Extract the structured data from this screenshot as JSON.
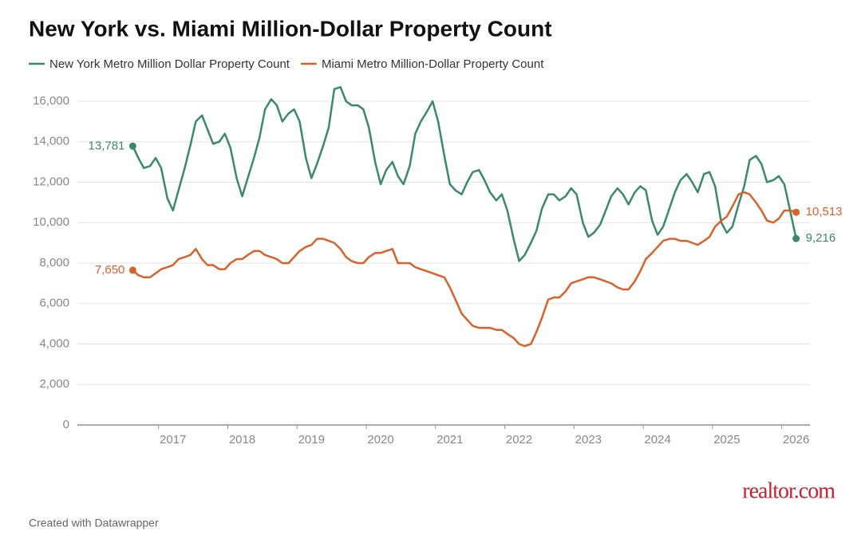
{
  "chart_data": {
    "type": "line",
    "title": "New York vs. Miami Million-Dollar Property Count",
    "footer": "Created with Datawrapper",
    "logo": "realtor.com",
    "x": [
      2016.42,
      2016.5,
      2016.58,
      2016.67,
      2016.75,
      2016.83,
      2016.92,
      2017,
      2017.08,
      2017.17,
      2017.25,
      2017.33,
      2017.42,
      2017.5,
      2017.58,
      2017.67,
      2017.75,
      2017.83,
      2017.92,
      2018,
      2018.08,
      2018.17,
      2018.25,
      2018.33,
      2018.42,
      2018.5,
      2018.58,
      2018.67,
      2018.75,
      2018.83,
      2018.92,
      2019,
      2019.08,
      2019.17,
      2019.25,
      2019.33,
      2019.42,
      2019.5,
      2019.58,
      2019.67,
      2019.75,
      2019.83,
      2019.92,
      2020,
      2020.08,
      2020.17,
      2020.25,
      2020.33,
      2020.42,
      2020.5,
      2020.58,
      2020.67,
      2020.75,
      2020.83,
      2020.92,
      2021,
      2021.08,
      2021.17,
      2021.25,
      2021.33,
      2021.42,
      2021.5,
      2021.58,
      2021.67,
      2021.75,
      2021.83,
      2021.92,
      2022,
      2022.08,
      2022.17,
      2022.25,
      2022.33,
      2022.42,
      2022.5,
      2022.58,
      2022.67,
      2022.75,
      2022.83,
      2022.92,
      2023,
      2023.08,
      2023.17,
      2023.25,
      2023.33,
      2023.42,
      2023.5,
      2023.58,
      2023.67,
      2023.75,
      2023.83,
      2023.92,
      2024,
      2024.08,
      2024.17,
      2024.25,
      2024.33,
      2024.42,
      2024.5,
      2024.58,
      2024.67,
      2024.75,
      2024.83,
      2024.92,
      2025,
      2025.08,
      2025.17,
      2025.25,
      2025.33,
      2025.42,
      2025.5,
      2025.58,
      2025.67,
      2025.75,
      2025.83,
      2025.92,
      2026
    ],
    "series": [
      {
        "name": "New York Metro Million Dollar Property Count",
        "color": "#3a8a68",
        "values": [
          13781,
          13200,
          12700,
          12800,
          13200,
          12700,
          11200,
          10600,
          11600,
          12700,
          13800,
          15000,
          15300,
          14600,
          13900,
          14000,
          14400,
          13700,
          12200,
          11300,
          12200,
          13200,
          14200,
          15600,
          16100,
          15800,
          15000,
          15400,
          15600,
          15000,
          13200,
          12200,
          12900,
          13800,
          14700,
          16600,
          16700,
          16000,
          15800,
          15800,
          15600,
          14700,
          13000,
          11900,
          12600,
          13000,
          12300,
          11900,
          12800,
          14400,
          15000,
          15500,
          16000,
          15000,
          13300,
          11900,
          11600,
          11400,
          12000,
          12500,
          12600,
          12100,
          11500,
          11100,
          11400,
          10600,
          9200,
          8100,
          8400,
          9000,
          9600,
          10700,
          11400,
          11400,
          11100,
          11300,
          11700,
          11400,
          10000,
          9300,
          9500,
          9900,
          10600,
          11300,
          11700,
          11400,
          10900,
          11500,
          11800,
          11600,
          10100,
          9400,
          9800,
          10700,
          11500,
          12100,
          12400,
          12000,
          11500,
          12400,
          12500,
          11800,
          10000,
          9500,
          9800,
          10900,
          11800,
          13100,
          13300,
          12900,
          12000,
          12100,
          12300,
          11900,
          10500,
          9216
        ],
        "value_labels": [
          "13,781",
          null,
          null,
          null,
          null,
          null,
          null,
          null,
          null,
          null,
          null,
          null,
          null,
          null,
          null,
          null,
          null,
          null,
          null,
          null,
          null,
          null,
          null,
          null,
          null,
          null,
          null,
          null,
          null,
          null,
          null,
          null,
          null,
          null,
          null,
          null,
          null,
          null,
          null,
          null,
          null,
          null,
          null,
          null,
          null,
          null,
          null,
          null,
          null,
          null,
          null,
          null,
          null,
          null,
          null,
          null,
          null,
          null,
          null,
          null,
          null,
          null,
          null,
          null,
          null,
          null,
          null,
          null,
          null,
          null,
          null,
          null,
          null,
          null,
          null,
          null,
          null,
          null,
          null,
          null,
          null,
          null,
          null,
          null,
          null,
          null,
          null,
          null,
          null,
          null,
          null,
          null,
          null,
          null,
          null,
          null,
          null,
          null,
          null,
          null,
          null,
          null,
          null,
          null,
          null,
          null,
          null,
          null,
          null,
          null,
          null,
          null,
          null,
          null,
          null,
          "9,216"
        ]
      },
      {
        "name": "Miami Metro Million-Dollar Property Count",
        "color": "#d9622b",
        "values": [
          7650,
          7400,
          7300,
          7300,
          7500,
          7700,
          7800,
          7900,
          8200,
          8300,
          8400,
          8700,
          8200,
          7900,
          7900,
          7700,
          7700,
          8000,
          8200,
          8200,
          8400,
          8600,
          8600,
          8400,
          8300,
          8200,
          8000,
          8000,
          8300,
          8600,
          8800,
          8900,
          9200,
          9200,
          9100,
          9000,
          8700,
          8300,
          8100,
          8000,
          8000,
          8300,
          8500,
          8500,
          8600,
          8700,
          8000,
          8000,
          8000,
          7800,
          7700,
          7600,
          7500,
          7400,
          7300,
          6800,
          6200,
          5500,
          5200,
          4900,
          4800,
          4800,
          4800,
          4700,
          4700,
          4500,
          4300,
          4000,
          3900,
          4000,
          4600,
          5300,
          6200,
          6300,
          6300,
          6600,
          7000,
          7100,
          7200,
          7300,
          7300,
          7200,
          7100,
          7000,
          6800,
          6700,
          6700,
          7100,
          7600,
          8200,
          8500,
          8800,
          9100,
          9200,
          9200,
          9100,
          9100,
          9000,
          8900,
          9100,
          9300,
          9800,
          10100,
          10300,
          10800,
          11400,
          11500,
          11400,
          11000,
          10600,
          10100,
          10000,
          10200,
          10600,
          10600,
          10513
        ],
        "value_labels": [
          "7,650",
          null,
          null,
          null,
          null,
          null,
          null,
          null,
          null,
          null,
          null,
          null,
          null,
          null,
          null,
          null,
          null,
          null,
          null,
          null,
          null,
          null,
          null,
          null,
          null,
          null,
          null,
          null,
          null,
          null,
          null,
          null,
          null,
          null,
          null,
          null,
          null,
          null,
          null,
          null,
          null,
          null,
          null,
          null,
          null,
          null,
          null,
          null,
          null,
          null,
          null,
          null,
          null,
          null,
          null,
          null,
          null,
          null,
          null,
          null,
          null,
          null,
          null,
          null,
          null,
          null,
          null,
          null,
          null,
          null,
          null,
          null,
          null,
          null,
          null,
          null,
          null,
          null,
          null,
          null,
          null,
          null,
          null,
          null,
          null,
          null,
          null,
          null,
          null,
          null,
          null,
          null,
          null,
          null,
          null,
          null,
          null,
          null,
          null,
          null,
          null,
          null,
          null,
          null,
          null,
          null,
          null,
          null,
          null,
          null,
          null,
          null,
          null,
          null,
          null,
          "10,513"
        ]
      }
    ],
    "xlim": [
      2015.62,
      2026.2
    ],
    "xticks": [
      2017,
      2018,
      2019,
      2020,
      2021,
      2022,
      2023,
      2024,
      2025,
      2026
    ],
    "ylim": [
      0,
      16000
    ],
    "yticks": [
      0,
      {
        "value": 2000,
        "label": "2,000"
      },
      {
        "value": 4000,
        "label": "4,000"
      },
      {
        "value": 6000,
        "label": "6,000"
      },
      {
        "value": 8000,
        "label": "8,000"
      },
      {
        "value": 10000,
        "label": "10,000"
      },
      {
        "value": 12000,
        "label": "12,000"
      },
      {
        "value": 14000,
        "label": "14,000"
      },
      {
        "value": 16000,
        "label": "16,000"
      }
    ],
    "grid": true,
    "legend": "top"
  }
}
